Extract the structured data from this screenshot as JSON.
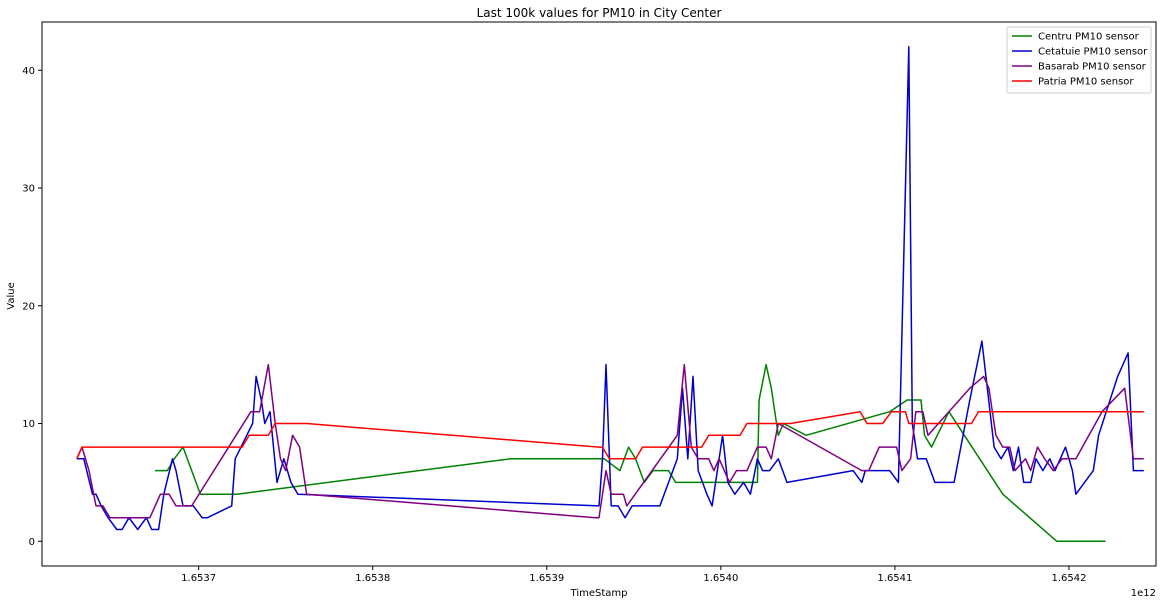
{
  "chart_data": {
    "type": "line",
    "title": "Last 100k values for PM10 in City Center",
    "xlabel": "TimeStamp",
    "ylabel": "Value",
    "x_offset_label": "1e12",
    "xlim": [
      1.65361,
      1.65425
    ],
    "ylim": [
      -2.1,
      44.1
    ],
    "xticks": [
      {
        "value": 1.6537,
        "label": "1.6537"
      },
      {
        "value": 1.6538,
        "label": "1.6538"
      },
      {
        "value": 1.6539,
        "label": "1.6539"
      },
      {
        "value": 1.654,
        "label": "1.6540"
      },
      {
        "value": 1.6541,
        "label": "1.6541"
      },
      {
        "value": 1.6542,
        "label": "1.6542"
      }
    ],
    "yticks": [
      0,
      10,
      20,
      30,
      40
    ],
    "grid": false,
    "legend_position": "top-right",
    "series": [
      {
        "name": "Centru PM10 sensor",
        "color": "#008000",
        "points": [
          [
            1.653675,
            6
          ],
          [
            1.653682,
            6
          ],
          [
            1.653686,
            7
          ],
          [
            1.653691,
            8
          ],
          [
            1.653701,
            4
          ],
          [
            1.653722,
            4
          ],
          [
            1.653879,
            7
          ],
          [
            1.653933,
            7
          ],
          [
            1.653942,
            6
          ],
          [
            1.653947,
            8
          ],
          [
            1.653951,
            7
          ],
          [
            1.653956,
            5
          ],
          [
            1.653961,
            6
          ],
          [
            1.65397,
            6
          ],
          [
            1.653974,
            5
          ],
          [
            1.654021,
            5
          ],
          [
            1.654022,
            12
          ],
          [
            1.654026,
            15
          ],
          [
            1.654029,
            13
          ],
          [
            1.654033,
            9
          ],
          [
            1.654036,
            10
          ],
          [
            1.654049,
            9
          ],
          [
            1.654097,
            11
          ],
          [
            1.654107,
            12
          ],
          [
            1.654115,
            12
          ],
          [
            1.654117,
            9
          ],
          [
            1.654121,
            8
          ],
          [
            1.654131,
            11
          ],
          [
            1.654162,
            4
          ],
          [
            1.654193,
            0
          ],
          [
            1.654221,
            0
          ]
        ]
      },
      {
        "name": "Cetatuie PM10 sensor",
        "color": "#0000cd",
        "points": [
          [
            1.65363,
            7
          ],
          [
            1.653634,
            7
          ],
          [
            1.653639,
            4
          ],
          [
            1.653641,
            4
          ],
          [
            1.653644,
            3
          ],
          [
            1.653648,
            2
          ],
          [
            1.653653,
            1
          ],
          [
            1.653656,
            1
          ],
          [
            1.65366,
            2
          ],
          [
            1.653665,
            1
          ],
          [
            1.65367,
            2
          ],
          [
            1.653673,
            1
          ],
          [
            1.653677,
            1
          ],
          [
            1.65368,
            4
          ],
          [
            1.653685,
            7
          ],
          [
            1.653687,
            6
          ],
          [
            1.653691,
            3
          ],
          [
            1.653697,
            3
          ],
          [
            1.653702,
            2
          ],
          [
            1.653705,
            2
          ],
          [
            1.653719,
            3
          ],
          [
            1.653721,
            7
          ],
          [
            1.653731,
            10
          ],
          [
            1.653733,
            14
          ],
          [
            1.653736,
            12
          ],
          [
            1.653738,
            10
          ],
          [
            1.653741,
            11
          ],
          [
            1.653745,
            5
          ],
          [
            1.653749,
            7
          ],
          [
            1.653753,
            5
          ],
          [
            1.653757,
            4
          ],
          [
            1.65393,
            3
          ],
          [
            1.653932,
            7
          ],
          [
            1.653934,
            15
          ],
          [
            1.653937,
            3
          ],
          [
            1.653941,
            3
          ],
          [
            1.653945,
            2
          ],
          [
            1.653949,
            3
          ],
          [
            1.653965,
            3
          ],
          [
            1.653975,
            7
          ],
          [
            1.653978,
            13
          ],
          [
            1.653981,
            7
          ],
          [
            1.653984,
            14
          ],
          [
            1.653987,
            6
          ],
          [
            1.653992,
            4
          ],
          [
            1.653995,
            3
          ],
          [
            1.654001,
            9
          ],
          [
            1.654004,
            5
          ],
          [
            1.654008,
            4
          ],
          [
            1.654013,
            5
          ],
          [
            1.654017,
            4
          ],
          [
            1.654021,
            7
          ],
          [
            1.654024,
            6
          ],
          [
            1.654028,
            6
          ],
          [
            1.654033,
            7
          ],
          [
            1.654038,
            5
          ],
          [
            1.654076,
            6
          ],
          [
            1.654081,
            5
          ],
          [
            1.654083,
            6
          ],
          [
            1.654097,
            6
          ],
          [
            1.654102,
            5
          ],
          [
            1.654108,
            42
          ],
          [
            1.65411,
            10
          ],
          [
            1.654113,
            7
          ],
          [
            1.654118,
            7
          ],
          [
            1.654123,
            5
          ],
          [
            1.654134,
            5
          ],
          [
            1.654143,
            12
          ],
          [
            1.65415,
            17
          ],
          [
            1.654157,
            8
          ],
          [
            1.654161,
            7
          ],
          [
            1.654165,
            8
          ],
          [
            1.654168,
            6
          ],
          [
            1.654171,
            8
          ],
          [
            1.654174,
            5
          ],
          [
            1.654178,
            5
          ],
          [
            1.654181,
            7
          ],
          [
            1.654185,
            6
          ],
          [
            1.654189,
            7
          ],
          [
            1.654192,
            6
          ],
          [
            1.654198,
            8
          ],
          [
            1.654202,
            6
          ],
          [
            1.654204,
            4
          ],
          [
            1.654214,
            6
          ],
          [
            1.654217,
            9
          ],
          [
            1.654228,
            14
          ],
          [
            1.654234,
            16
          ],
          [
            1.654237,
            6
          ],
          [
            1.654243,
            6
          ]
        ]
      },
      {
        "name": "Basarab PM10 sensor",
        "color": "#800080",
        "points": [
          [
            1.65363,
            7
          ],
          [
            1.653633,
            8
          ],
          [
            1.653637,
            6
          ],
          [
            1.653641,
            3
          ],
          [
            1.653645,
            3
          ],
          [
            1.653649,
            2
          ],
          [
            1.653672,
            2
          ],
          [
            1.653678,
            4
          ],
          [
            1.653683,
            4
          ],
          [
            1.653687,
            3
          ],
          [
            1.653696,
            3
          ],
          [
            1.65373,
            11
          ],
          [
            1.653735,
            11
          ],
          [
            1.65374,
            15
          ],
          [
            1.653744,
            10
          ],
          [
            1.653747,
            7
          ],
          [
            1.65375,
            6
          ],
          [
            1.653754,
            9
          ],
          [
            1.653758,
            8
          ],
          [
            1.653762,
            4
          ],
          [
            1.653928,
            2
          ],
          [
            1.65393,
            2
          ],
          [
            1.653934,
            6
          ],
          [
            1.653937,
            4
          ],
          [
            1.653944,
            4
          ],
          [
            1.653946,
            3
          ],
          [
            1.653975,
            9
          ],
          [
            1.653979,
            15
          ],
          [
            1.653983,
            8
          ],
          [
            1.653987,
            7
          ],
          [
            1.653993,
            7
          ],
          [
            1.653996,
            6
          ],
          [
            1.653999,
            7
          ],
          [
            1.654005,
            5
          ],
          [
            1.654009,
            6
          ],
          [
            1.654015,
            6
          ],
          [
            1.654021,
            8
          ],
          [
            1.654026,
            8
          ],
          [
            1.654029,
            7
          ],
          [
            1.654033,
            10
          ],
          [
            1.654081,
            6
          ],
          [
            1.654085,
            6
          ],
          [
            1.654091,
            8
          ],
          [
            1.654101,
            8
          ],
          [
            1.654104,
            6
          ],
          [
            1.654109,
            7
          ],
          [
            1.654112,
            11
          ],
          [
            1.654116,
            11
          ],
          [
            1.654119,
            9
          ],
          [
            1.654143,
            13
          ],
          [
            1.654151,
            14
          ],
          [
            1.654154,
            13
          ],
          [
            1.654158,
            9
          ],
          [
            1.654162,
            8
          ],
          [
            1.654166,
            8
          ],
          [
            1.654169,
            6
          ],
          [
            1.654175,
            7
          ],
          [
            1.654178,
            6
          ],
          [
            1.654182,
            8
          ],
          [
            1.654186,
            7
          ],
          [
            1.654191,
            6
          ],
          [
            1.654196,
            7
          ],
          [
            1.654204,
            7
          ],
          [
            1.654219,
            11
          ],
          [
            1.654232,
            13
          ],
          [
            1.654237,
            7
          ],
          [
            1.654243,
            7
          ]
        ]
      },
      {
        "name": "Patria PM10 sensor",
        "color": "#ff0000",
        "points": [
          [
            1.65363,
            7
          ],
          [
            1.653633,
            8
          ],
          [
            1.653725,
            8
          ],
          [
            1.653729,
            9
          ],
          [
            1.65374,
            9
          ],
          [
            1.653744,
            10
          ],
          [
            1.653762,
            10
          ],
          [
            1.65393,
            8
          ],
          [
            1.653932,
            8
          ],
          [
            1.653936,
            7
          ],
          [
            1.653951,
            7
          ],
          [
            1.653955,
            8
          ],
          [
            1.653989,
            8
          ],
          [
            1.653993,
            9
          ],
          [
            1.654011,
            9
          ],
          [
            1.654015,
            10
          ],
          [
            1.65404,
            10
          ],
          [
            1.65408,
            11
          ],
          [
            1.654084,
            10
          ],
          [
            1.654093,
            10
          ],
          [
            1.654098,
            11
          ],
          [
            1.654106,
            11
          ],
          [
            1.654108,
            10
          ],
          [
            1.654144,
            10
          ],
          [
            1.654148,
            11
          ],
          [
            1.654243,
            11
          ]
        ]
      }
    ]
  }
}
